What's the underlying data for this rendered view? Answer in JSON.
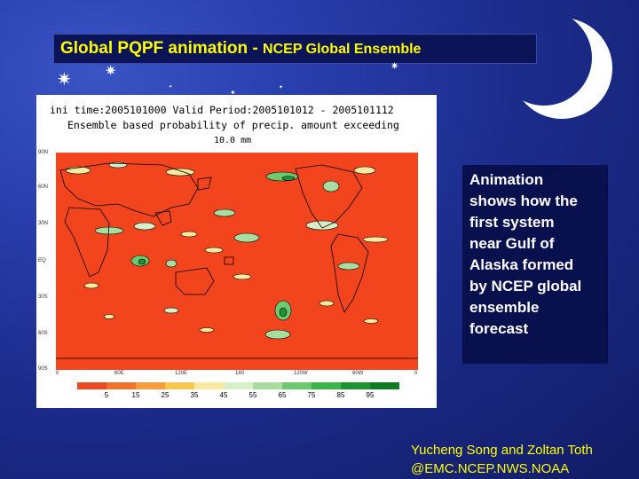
{
  "slide": {
    "title_main": "Global PQPF animation - ",
    "title_sub": "NCEP Global Ensemble",
    "info_lines": [
      "Animation",
      "shows how the",
      "first system",
      "near Gulf of",
      "Alaska formed",
      "by NCEP global",
      "ensemble",
      "forecast"
    ],
    "credit_line1": "Yucheng Song and Zoltan Toth",
    "credit_line2": "@EMC.NCEP.NWS.NOAA"
  },
  "map": {
    "header_line1": "ini time:2005101000  Valid Period:2005101012 - 2005101112",
    "header_line2": "Ensemble based probability of precip. amount exceeding",
    "header_line3": "10.0 mm",
    "lat_labels": [
      "90N",
      "60N",
      "30N",
      "EQ",
      "30S",
      "60S",
      "90S"
    ],
    "lon_labels": [
      "0",
      "60E",
      "120E",
      "180",
      "120W",
      "60W",
      "0"
    ],
    "legend_values": [
      "5",
      "15",
      "25",
      "35",
      "45",
      "55",
      "65",
      "75",
      "85",
      "95"
    ],
    "legend_colors": [
      "#ea4a22",
      "#f1722d",
      "#f59d3a",
      "#f8c84f",
      "#faeaa0",
      "#d8f0c9",
      "#a7dea0",
      "#6dc970",
      "#3ab449",
      "#1d9431",
      "#0f7c25"
    ],
    "background_color": "#f2451d",
    "land_outline_color": "#000000"
  }
}
